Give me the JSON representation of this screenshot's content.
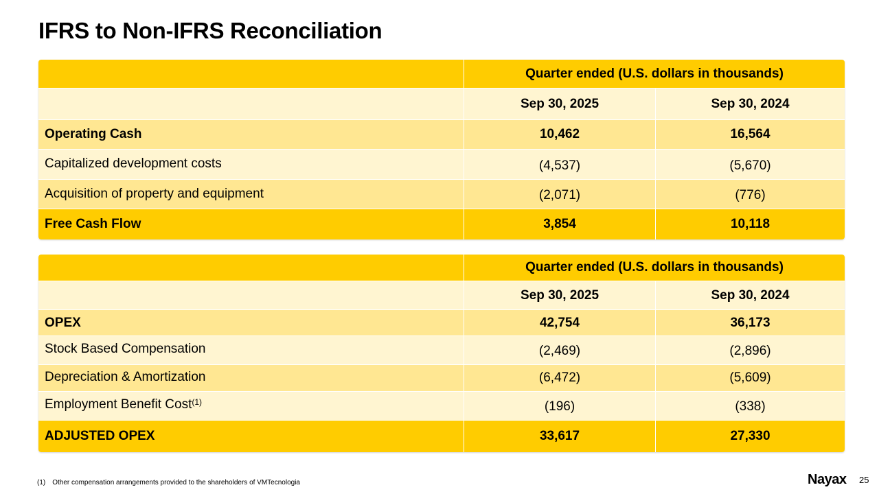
{
  "title": "IFRS to Non-IFRS Reconciliation",
  "table1": {
    "header": "Quarter ended (U.S. dollars in thousands)",
    "col1": "Sep 30, 2025",
    "col2": "Sep 30, 2024",
    "rows": [
      {
        "label": "Operating Cash",
        "v1": "10,462",
        "v2": "16,564"
      },
      {
        "label": "Capitalized development costs",
        "v1": "(4,537)",
        "v2": "(5,670)"
      },
      {
        "label": "Acquisition of property and equipment",
        "v1": "(2,071)",
        "v2": "(776)"
      },
      {
        "label": "Free Cash Flow",
        "v1": "3,854",
        "v2": "10,118"
      }
    ]
  },
  "table2": {
    "header": "Quarter ended (U.S. dollars in thousands)",
    "col1": "Sep 30, 2025",
    "col2": "Sep 30, 2024",
    "rows": [
      {
        "label": "OPEX",
        "v1": "42,754",
        "v2": "36,173"
      },
      {
        "label": "Stock Based Compensation",
        "v1": "(2,469)",
        "v2": "(2,896)"
      },
      {
        "label": "Depreciation & Amortization",
        "v1": "(6,472)",
        "v2": "(5,609)"
      },
      {
        "label": "Employment Benefit Cost",
        "sup": "(1)",
        "v1": "(196)",
        "v2": "(338)"
      },
      {
        "label": "ADJUSTED OPEX",
        "v1": "33,617",
        "v2": "27,330"
      }
    ]
  },
  "footnote": {
    "marker": "(1)",
    "text": "Other compensation arrangements provided to the shareholders of VMTecnologia"
  },
  "logo": "Nayax",
  "page_number": "25"
}
